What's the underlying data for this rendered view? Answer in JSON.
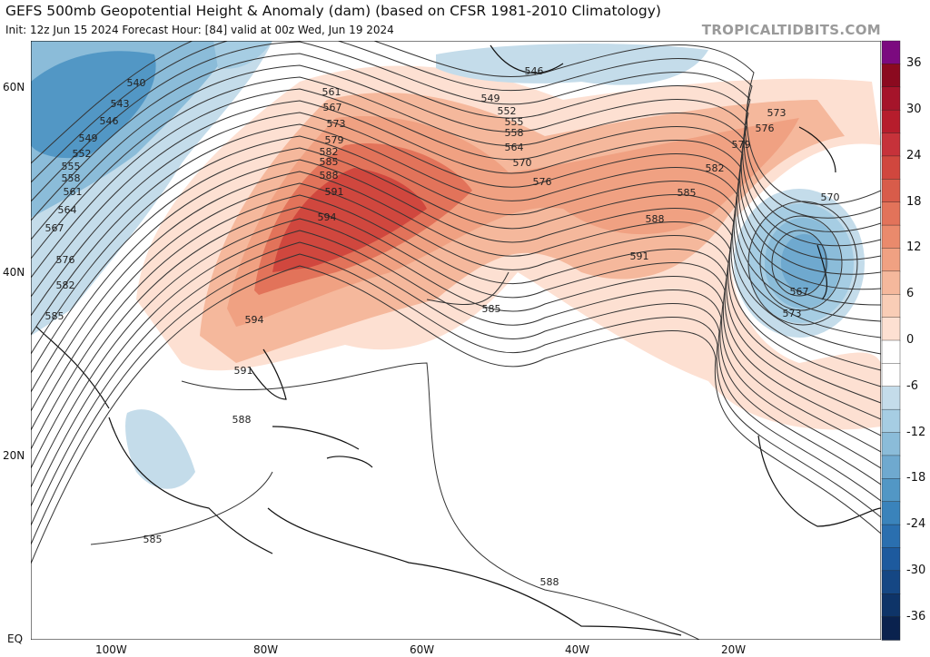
{
  "header": {
    "title": "GEFS 500mb Geopotential Height & Anomaly (dam) (based on CFSR 1981-2010 Climatology)",
    "subtitle": "Init: 12z Jun 15 2024   Forecast Hour: [84]   valid at 00z Wed, Jun 19 2024",
    "brand": "TROPICALTIDBITS.COM"
  },
  "axes": {
    "lat_labels": [
      "60N",
      "40N",
      "20N",
      "EQ"
    ],
    "lon_labels": [
      "100W",
      "80W",
      "60W",
      "40W",
      "20W"
    ]
  },
  "colorbar": {
    "labels": [
      "36",
      "30",
      "24",
      "18",
      "12",
      "6",
      "0",
      "-6",
      "-12",
      "-18",
      "-24",
      "-30",
      "-36"
    ],
    "colors": [
      "#7b0a7f",
      "#8b0a1f",
      "#a5142a",
      "#b61d2c",
      "#c6323a",
      "#d0473e",
      "#d85c4a",
      "#e2735a",
      "#ea8a6c",
      "#f0a182",
      "#f5b89c",
      "#f9cdb6",
      "#fde0d2",
      "#ffffff",
      "#ffffff",
      "#c4dcea",
      "#a6cde3",
      "#8bbcd9",
      "#6fa9cf",
      "#5297c5",
      "#3a83bb",
      "#2a6faf",
      "#1d5a9e",
      "#154784",
      "#0e3468",
      "#0a224e"
    ]
  },
  "contour_labels": [
    "540",
    "543",
    "546",
    "549",
    "552",
    "555",
    "558",
    "561",
    "564",
    "567",
    "576",
    "582",
    "585",
    "561",
    "567",
    "573",
    "579",
    "582",
    "585",
    "588",
    "591",
    "594",
    "594",
    "591",
    "588",
    "585",
    "546",
    "549",
    "552",
    "555",
    "558",
    "564",
    "570",
    "576",
    "573",
    "576",
    "579",
    "582",
    "585",
    "588",
    "591",
    "570",
    "567",
    "573",
    "585",
    "588"
  ]
}
